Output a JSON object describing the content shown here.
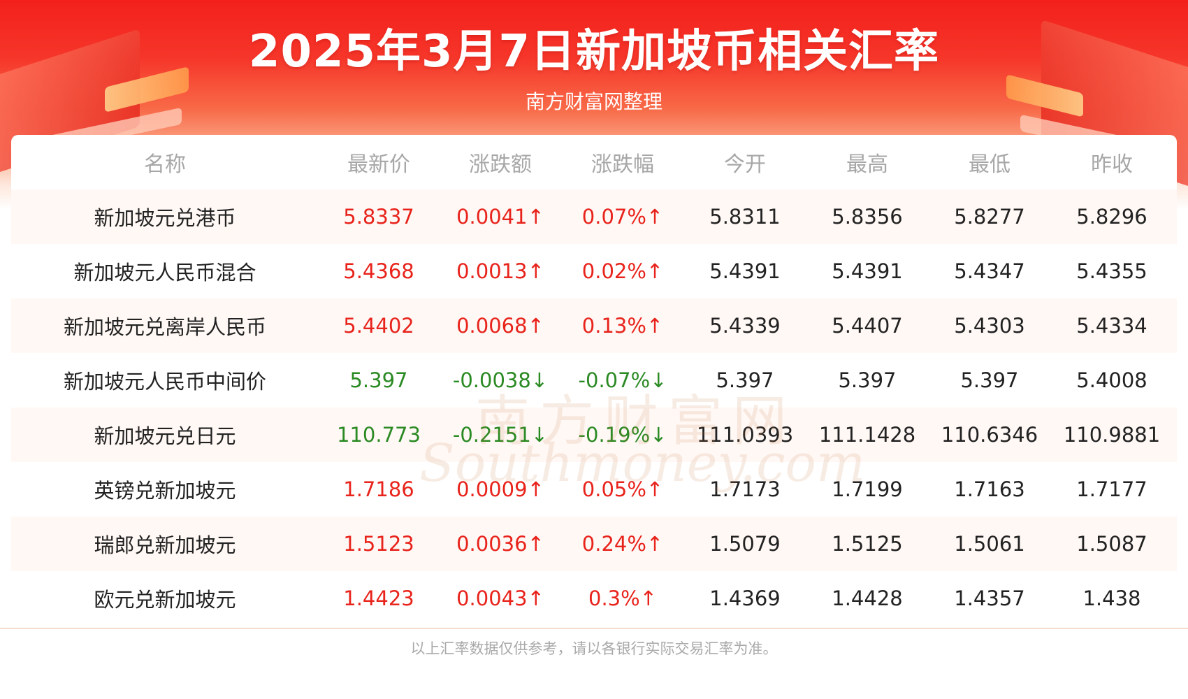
{
  "title": "2025年3月7日新加坡币相关汇率",
  "subtitle": "南方财富网整理",
  "headers": [
    "名称",
    "最新价",
    "涨跌额",
    "涨跌幅",
    "今开",
    "最高",
    "最低",
    "昨收"
  ],
  "rows": [
    {
      "name": "新加坡元兑港币",
      "latest": "5.8337",
      "change": "0.0041↑",
      "pct": "0.07%↑",
      "open": "5.8311",
      "high": "5.8356",
      "low": "5.8277",
      "prev": "5.8296",
      "trend": "up"
    },
    {
      "name": "新加坡元人民币混合",
      "latest": "5.4368",
      "change": "0.0013↑",
      "pct": "0.02%↑",
      "open": "5.4391",
      "high": "5.4391",
      "low": "5.4347",
      "prev": "5.4355",
      "trend": "up"
    },
    {
      "name": "新加坡元兑离岸人民币",
      "latest": "5.4402",
      "change": "0.0068↑",
      "pct": "0.13%↑",
      "open": "5.4339",
      "high": "5.4407",
      "low": "5.4303",
      "prev": "5.4334",
      "trend": "up"
    },
    {
      "name": "新加坡元人民币中间价",
      "latest": "5.397",
      "change": "-0.0038↓",
      "pct": "-0.07%↓",
      "open": "5.397",
      "high": "5.397",
      "low": "5.397",
      "prev": "5.4008",
      "trend": "down"
    },
    {
      "name": "新加坡元兑日元",
      "latest": "110.773",
      "change": "-0.2151↓",
      "pct": "-0.19%↓",
      "open": "111.0393",
      "high": "111.1428",
      "low": "110.6346",
      "prev": "110.9881",
      "trend": "down"
    },
    {
      "name": "英镑兑新加坡元",
      "latest": "1.7186",
      "change": "0.0009↑",
      "pct": "0.05%↑",
      "open": "1.7173",
      "high": "1.7199",
      "low": "1.7163",
      "prev": "1.7177",
      "trend": "up"
    },
    {
      "name": "瑞郎兑新加坡元",
      "latest": "1.5123",
      "change": "0.0036↑",
      "pct": "0.24%↑",
      "open": "1.5079",
      "high": "1.5125",
      "low": "1.5061",
      "prev": "1.5087",
      "trend": "up"
    },
    {
      "name": "欧元兑新加坡元",
      "latest": "1.4423",
      "change": "0.0043↑",
      "pct": "0.3%↑",
      "open": "1.4369",
      "high": "1.4428",
      "low": "1.4357",
      "prev": "1.438",
      "trend": "up"
    }
  ],
  "footer": "以上汇率数据仅供参考，请以各银行实际交易汇率为准。",
  "watermark": {
    "cn": "南方财富网",
    "en": "Southmoney.com"
  },
  "colors": {
    "up": "#e8231b",
    "down": "#2a8a23",
    "banner": "#f3201b"
  }
}
